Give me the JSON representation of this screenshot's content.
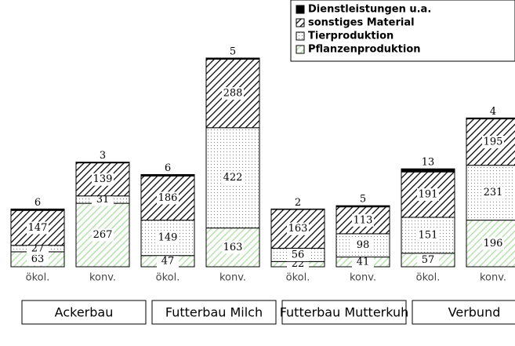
{
  "chart_data": {
    "type": "bar",
    "stacked": true,
    "categories": [
      "ökol.",
      "konv.",
      "ökol.",
      "konv.",
      "ökol.",
      "konv.",
      "ökol.",
      "konv."
    ],
    "groups": [
      "Ackerbau",
      "Futterbau Milch",
      "Futterbau Mutterkuh",
      "Verbund"
    ],
    "legend": "top-right",
    "series": [
      {
        "name": "Pflanzenproduktion",
        "color": "#b8e0b0",
        "pattern": "hatch-light",
        "values": [
          63,
          267,
          47,
          163,
          22,
          41,
          57,
          196
        ]
      },
      {
        "name": "Tierproduktion",
        "color": "#808080",
        "pattern": "dots",
        "values": [
          27,
          31,
          149,
          422,
          56,
          98,
          151,
          231
        ]
      },
      {
        "name": "sonstiges Material",
        "color": "#000000",
        "pattern": "hatch",
        "values": [
          147,
          139,
          186,
          288,
          163,
          113,
          191,
          195
        ]
      },
      {
        "name": "Dienstleistungen u.a.",
        "color": "#000000",
        "pattern": "solid",
        "values": [
          6,
          3,
          6,
          5,
          2,
          5,
          13,
          4
        ]
      }
    ]
  }
}
